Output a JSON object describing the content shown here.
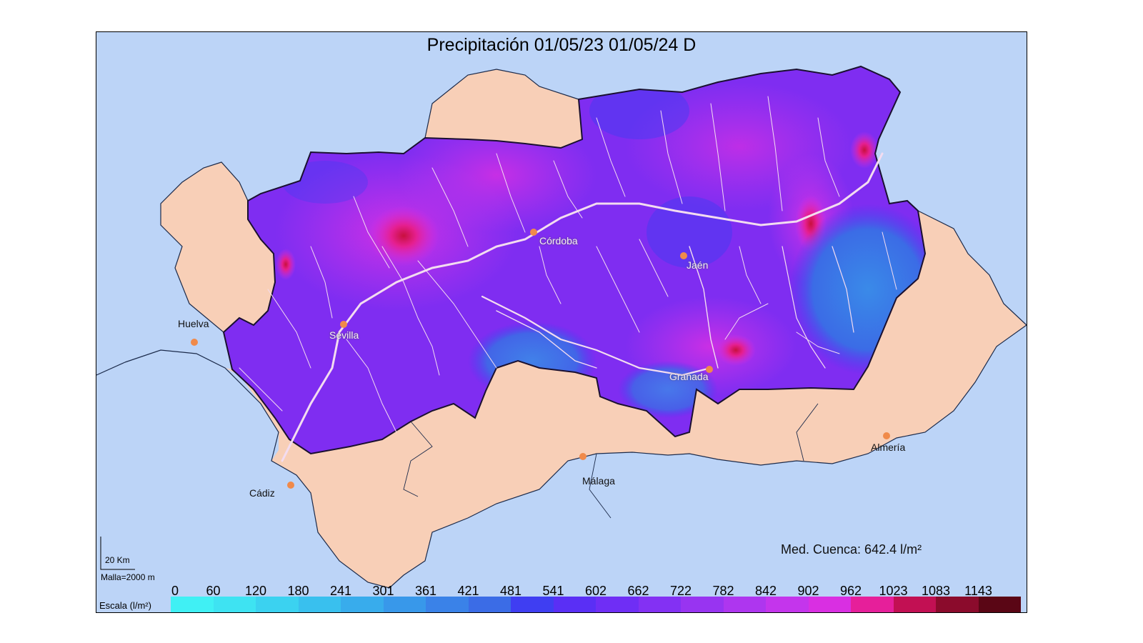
{
  "title": "Precipitación 01/05/23 01/05/24 D",
  "colors": {
    "sea": "#bcd4f7",
    "land": "#f8cfb7",
    "basin": "#8a2df0",
    "rivers": "#f3dcf0",
    "city_marker": "#f08a4a"
  },
  "cities": [
    {
      "name": "Huelva",
      "inland": false
    },
    {
      "name": "Sevilla",
      "inland": true
    },
    {
      "name": "Córdoba",
      "inland": true
    },
    {
      "name": "Jaén",
      "inland": true
    },
    {
      "name": "Granada",
      "inland": true
    },
    {
      "name": "Cádiz",
      "inland": false
    },
    {
      "name": "Málaga",
      "inland": false
    },
    {
      "name": "Almería",
      "inland": false
    }
  ],
  "scale_bar": {
    "distance": "20 Km",
    "grid": "Malla=2000 m"
  },
  "summary": "Med. Cuenca: 642.4 l/m²",
  "legend": {
    "title": "Escala (l/m²)",
    "ticks": [
      "0",
      "60",
      "120",
      "180",
      "241",
      "301",
      "361",
      "421",
      "481",
      "541",
      "602",
      "662",
      "722",
      "782",
      "842",
      "902",
      "962",
      "1023",
      "1083",
      "1143"
    ],
    "colors": [
      "#40f0f4",
      "#3ee3f2",
      "#3bd2f0",
      "#39c0ee",
      "#38acec",
      "#3898ea",
      "#3a82e8",
      "#3b6ce6",
      "#3f3ef2",
      "#5a2ff5",
      "#6f2ef5",
      "#8331f3",
      "#9834f1",
      "#ae36ef",
      "#c435ec",
      "#d92fe2",
      "#e61f9a",
      "#c21053",
      "#8b0b2c",
      "#5a0615"
    ]
  }
}
